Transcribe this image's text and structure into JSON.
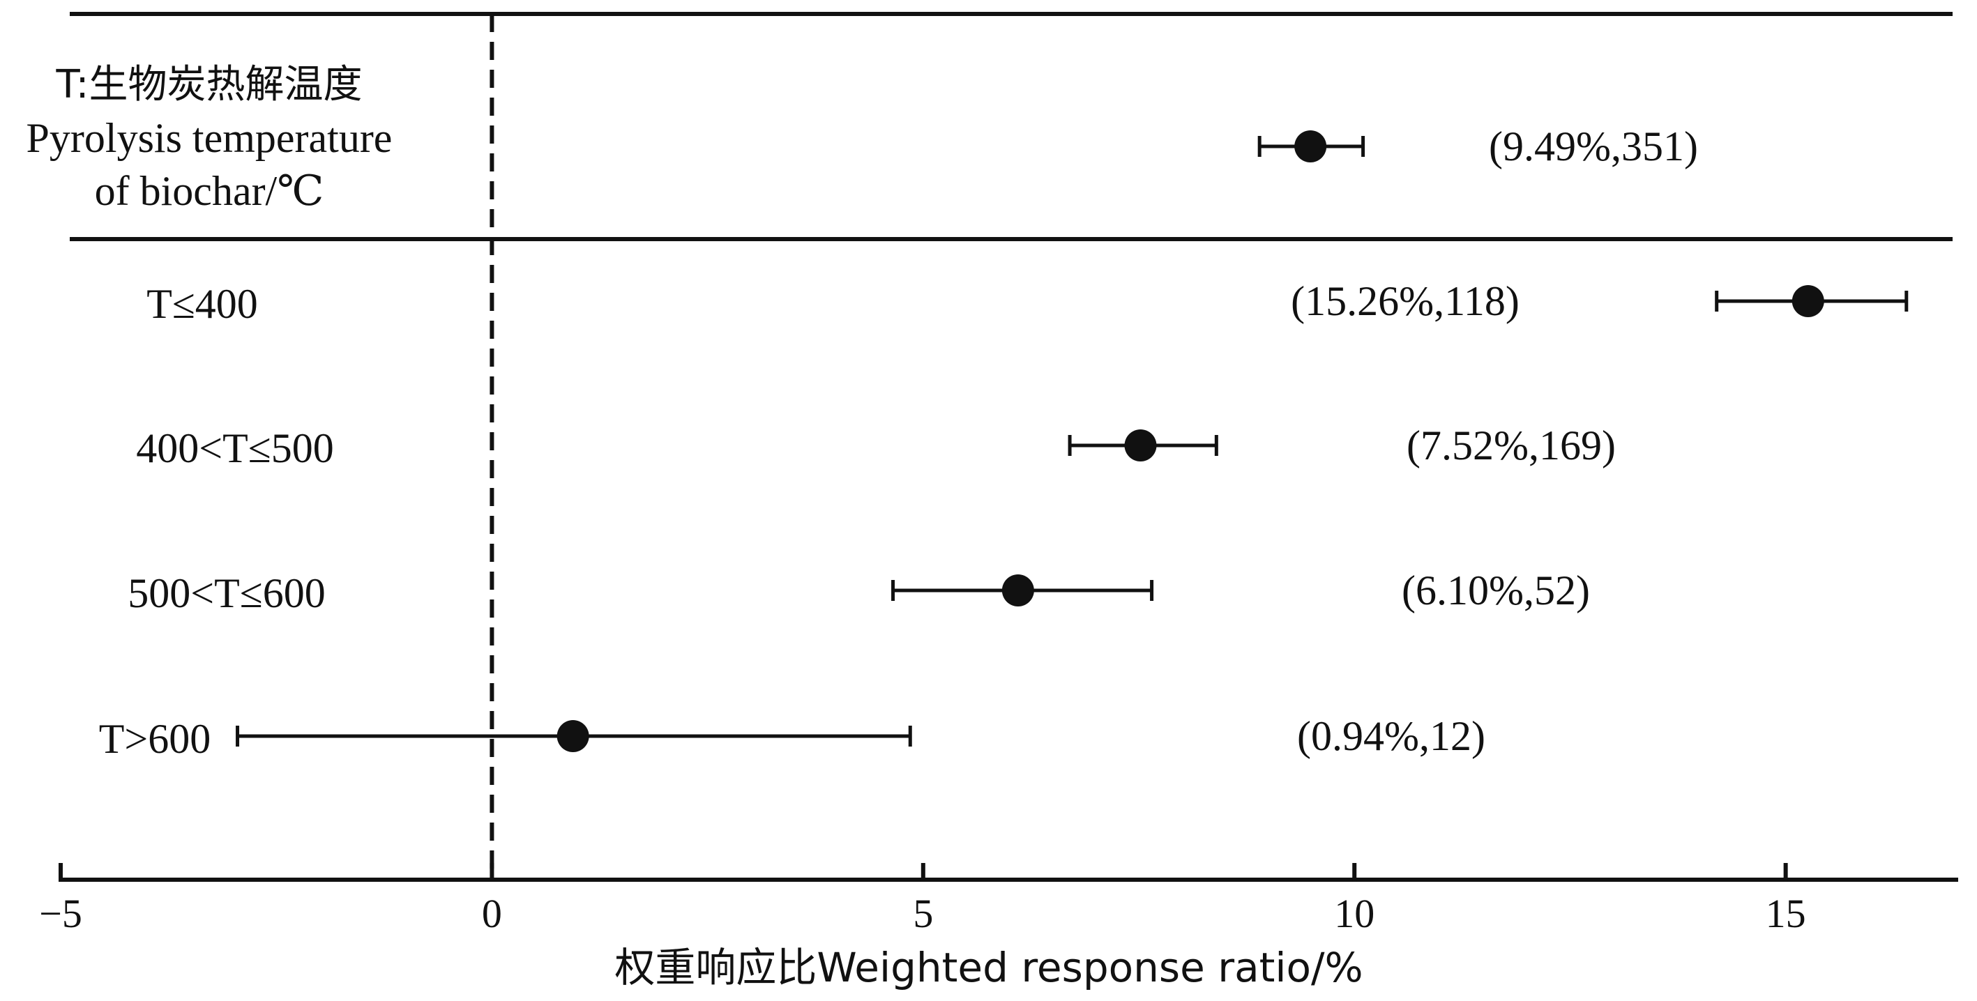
{
  "chart_data": {
    "type": "forest",
    "header_label_lines": [
      "T:生物炭热解温度",
      "Pyrolysis temperature",
      "of biochar/℃"
    ],
    "overall": {
      "label": "",
      "mean": 9.49,
      "lower": 8.9,
      "upper": 10.1,
      "annotation": "(9.49%,351)"
    },
    "rows": [
      {
        "label": "T≤400",
        "mean": 15.26,
        "lower": 14.2,
        "upper": 16.4,
        "annotation": "(15.26%,118)"
      },
      {
        "label": "400<T≤500",
        "mean": 7.52,
        "lower": 6.7,
        "upper": 8.4,
        "annotation": "(7.52%,169)"
      },
      {
        "label": "500<T≤600",
        "mean": 6.1,
        "lower": 4.65,
        "upper": 7.65,
        "annotation": "(6.10%,52)"
      },
      {
        "label": "T>600",
        "mean": 0.94,
        "lower": -2.95,
        "upper": 4.85,
        "annotation": "(0.94%,12)"
      }
    ],
    "x_ticks": [
      -5,
      0,
      5,
      10,
      15
    ],
    "x_tick_labels": [
      "−5",
      "0",
      "5",
      "10",
      "15"
    ],
    "xlim": [
      -5,
      17
    ],
    "xlabel": "权重响应比Weighted response ratio/%",
    "reference_line": 0
  }
}
